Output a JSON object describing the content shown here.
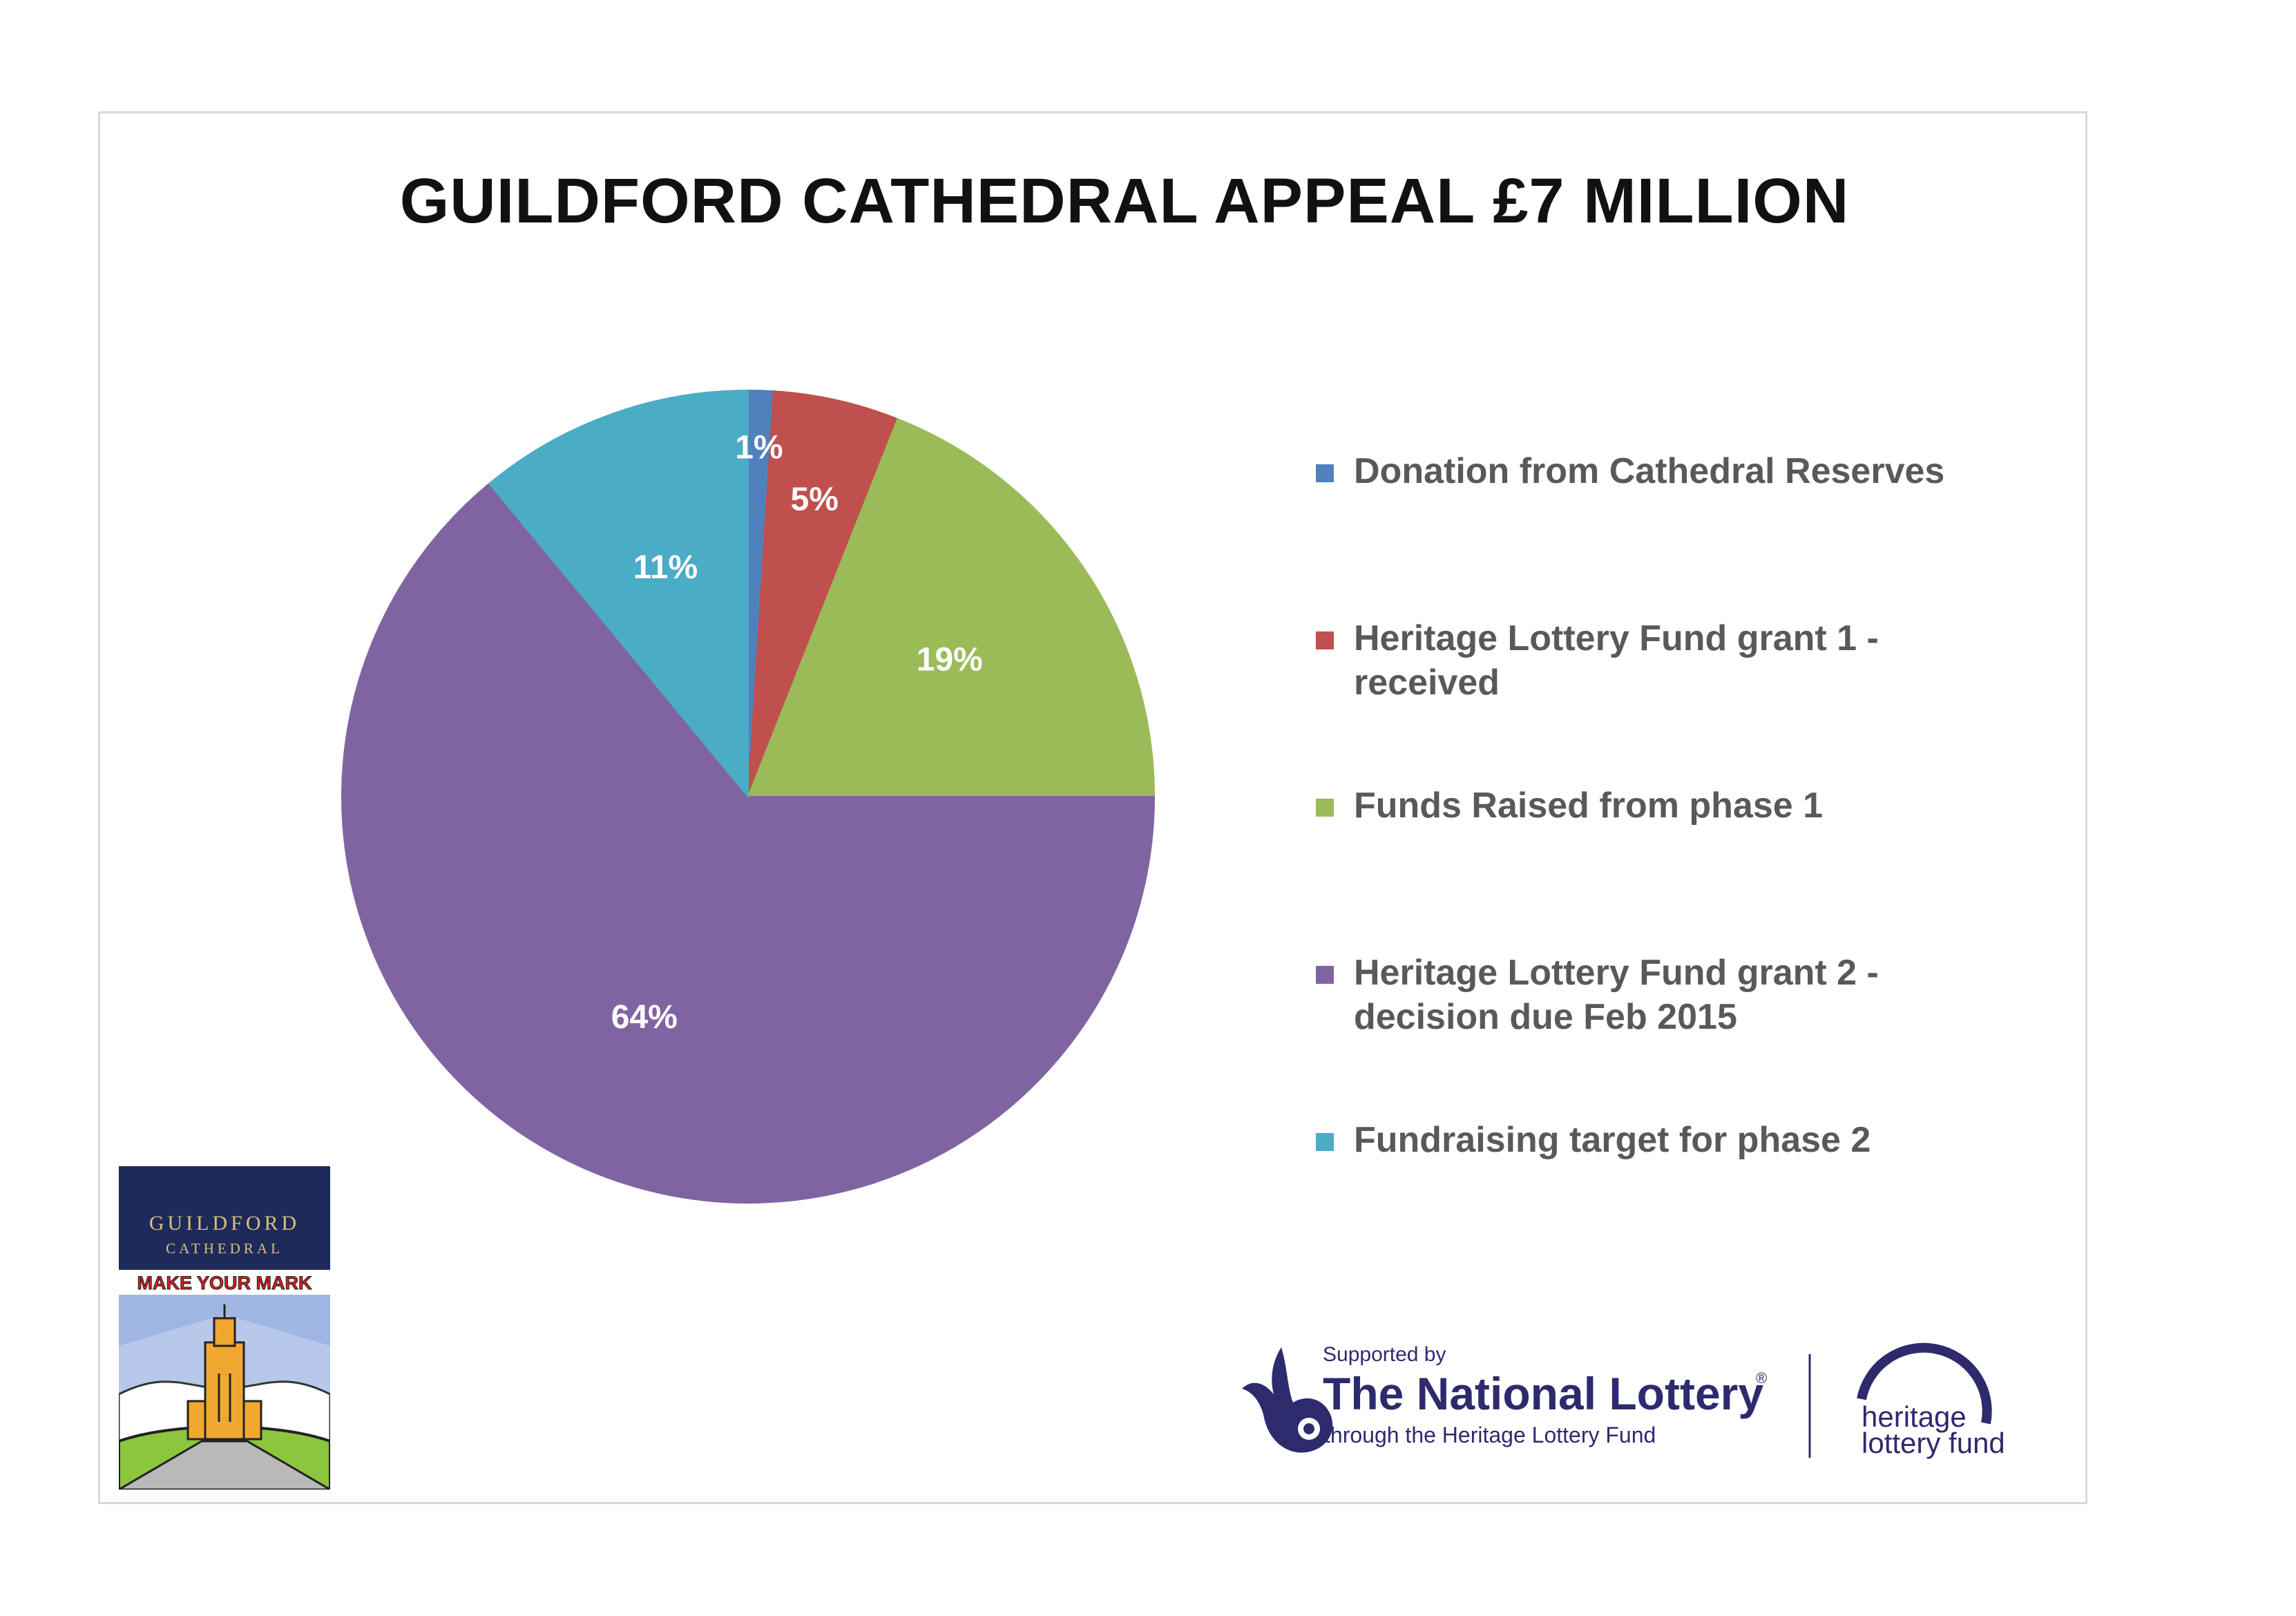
{
  "chart_data": {
    "type": "pie",
    "title": "GUILDFORD CATHEDRAL APPEAL £7 MILLION",
    "slices": [
      {
        "label": "Donation from Cathedral Reserves",
        "value": 1,
        "display": "1%",
        "color": "#4F81BD"
      },
      {
        "label": "Heritage Lottery Fund grant 1 - received",
        "value": 5,
        "display": "5%",
        "color": "#C0504D"
      },
      {
        "label": "Funds Raised from phase 1",
        "value": 19,
        "display": "19%",
        "color": "#9BBB59"
      },
      {
        "label": "Heritage Lottery Fund grant 2 - decision due Feb 2015",
        "value": 64,
        "display": "64%",
        "color": "#8064A2"
      },
      {
        "label": "Fundraising target for phase 2",
        "value": 11,
        "display": "11%",
        "color": "#4BACC6"
      }
    ],
    "legend_position": "right"
  },
  "badge": {
    "line1": "GUILDFORD",
    "line2": "CATHEDRAL",
    "slogan": "MAKE YOUR MARK"
  },
  "sponsor": {
    "supported_by": "Supported by",
    "name": "The National Lottery",
    "registered": "®",
    "through": "through the Heritage Lottery Fund",
    "hlf_line1": "heritage",
    "hlf_line2": "lottery fund",
    "brand_color": "#2E2A6E"
  }
}
